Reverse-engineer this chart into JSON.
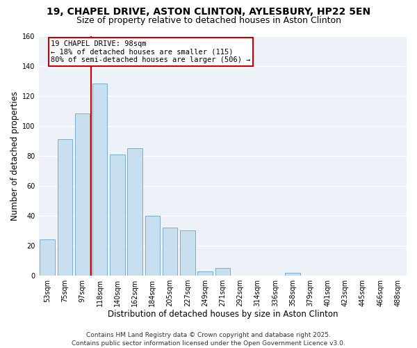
{
  "title": "19, CHAPEL DRIVE, ASTON CLINTON, AYLESBURY, HP22 5EN",
  "subtitle": "Size of property relative to detached houses in Aston Clinton",
  "xlabel": "Distribution of detached houses by size in Aston Clinton",
  "ylabel": "Number of detached properties",
  "categories": [
    "53sqm",
    "75sqm",
    "97sqm",
    "118sqm",
    "140sqm",
    "162sqm",
    "184sqm",
    "205sqm",
    "227sqm",
    "249sqm",
    "271sqm",
    "292sqm",
    "314sqm",
    "336sqm",
    "358sqm",
    "379sqm",
    "401sqm",
    "423sqm",
    "445sqm",
    "466sqm",
    "488sqm"
  ],
  "values": [
    24,
    91,
    108,
    128,
    81,
    85,
    40,
    32,
    30,
    3,
    5,
    0,
    0,
    0,
    2,
    0,
    0,
    0,
    0,
    0,
    0
  ],
  "bar_color": "#c8dff0",
  "bar_edge_color": "#7aadd4",
  "vline_x": 2.5,
  "vline_color": "#cc0000",
  "annotation_line1": "19 CHAPEL DRIVE: 98sqm",
  "annotation_line2": "← 18% of detached houses are smaller (115)",
  "annotation_line3": "80% of semi-detached houses are larger (506) →",
  "annotation_box_color": "#ffffff",
  "annotation_box_edge": "#cc0000",
  "ylim": [
    0,
    160
  ],
  "yticks": [
    0,
    20,
    40,
    60,
    80,
    100,
    120,
    140,
    160
  ],
  "footer_line1": "Contains HM Land Registry data © Crown copyright and database right 2025.",
  "footer_line2": "Contains public sector information licensed under the Open Government Licence v3.0.",
  "bg_color": "#ffffff",
  "plot_bg_color": "#edf2f8",
  "grid_color": "#ffffff",
  "title_fontsize": 10,
  "subtitle_fontsize": 9,
  "axis_label_fontsize": 8.5,
  "tick_fontsize": 7,
  "footer_fontsize": 6.5,
  "annotation_fontsize": 7.5
}
